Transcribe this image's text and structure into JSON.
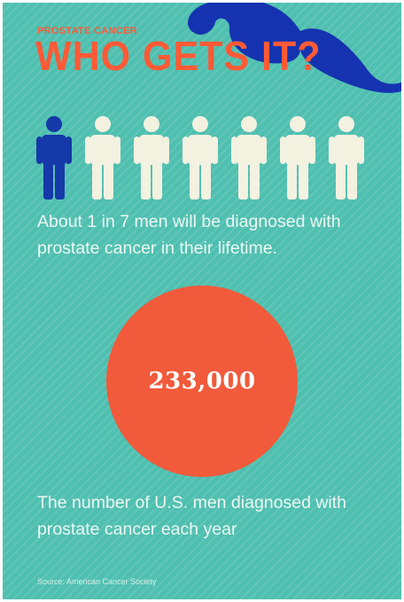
{
  "infographic": {
    "kicker": "PROSTATE CANCER",
    "headline": "WHO GETS IT?",
    "stat_text": "About 1 in 7 men will be diagnosed with prostate cancer in their lifetime.",
    "stat_ratio": {
      "highlighted": 1,
      "total": 7
    },
    "big_number": "233,000",
    "big_number_caption": "The number of U.S. men diagnosed with prostate cancer each year",
    "source": "Source: American Cancer Society"
  },
  "colors": {
    "background": "#4fbfb0",
    "accent_orange": "#f15a3a",
    "headline_orange": "#ff5a36",
    "highlight_figure": "#1539a8",
    "figure": "#f3f1e0",
    "mustache": "#1533b0",
    "text": "#ecf7f2"
  },
  "icons": {
    "mustache": "mustache-icon",
    "person": "person-icon"
  }
}
